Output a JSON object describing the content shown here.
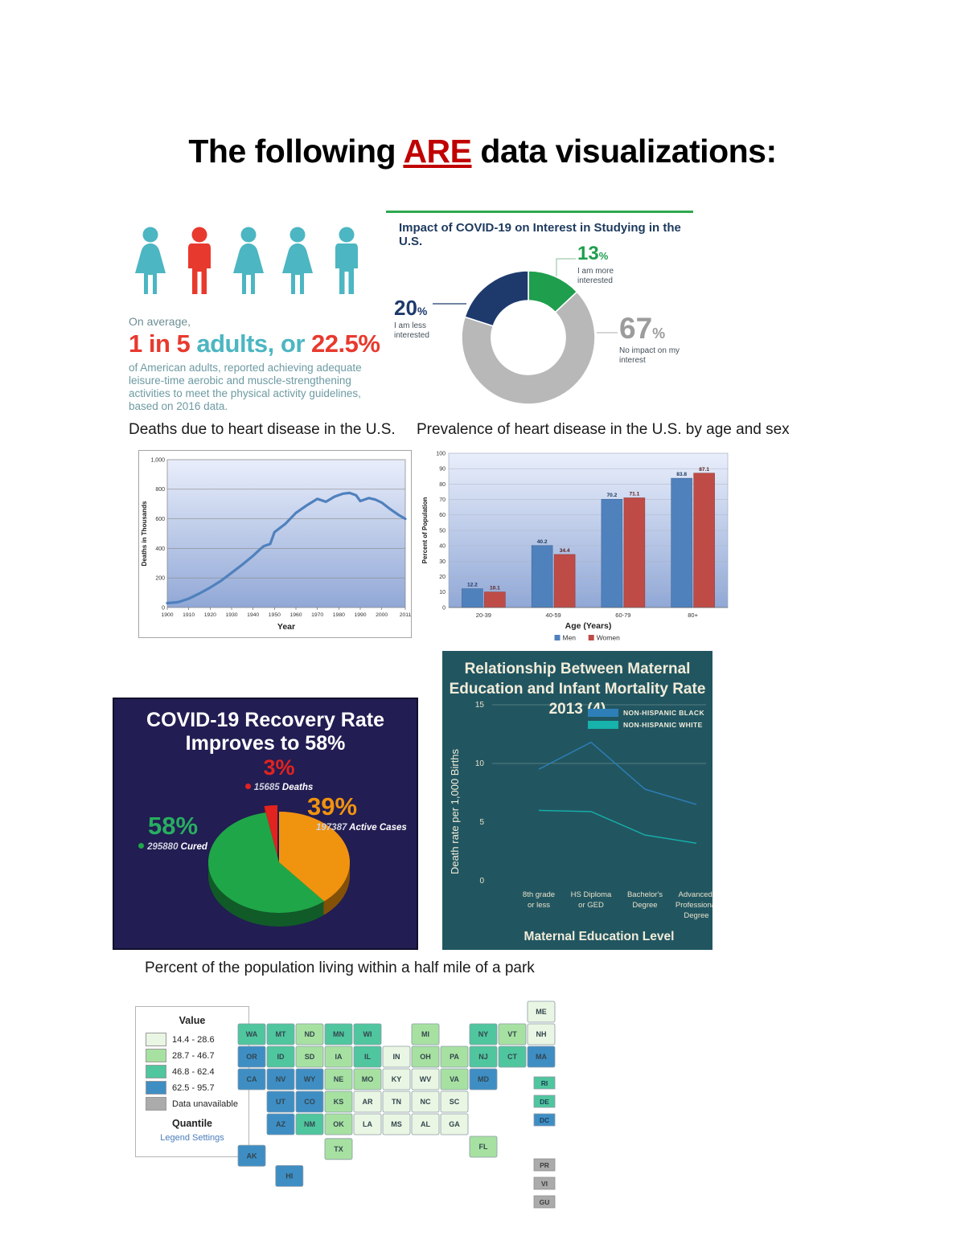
{
  "page": {
    "title_part1": "The following ",
    "title_are": "ARE",
    "title_part2": " data visualizations:"
  },
  "infographic": {
    "icons": [
      "woman",
      "man",
      "woman",
      "woman",
      "man"
    ],
    "highlight_index": 1,
    "teal": "#4cb6c2",
    "red": "#e8392e",
    "line1": "On average,",
    "big_red1": "1 in 5",
    "big_teal": " adults, or ",
    "big_red2": "22.5%",
    "body": "of American adults, reported achieving adequate leisure-time aerobic and muscle-strengthening activities to meet the physical activity guidelines, based on 2016 data."
  },
  "captions": {
    "line_chart": "Deaths due to heart disease in the U.S.",
    "bar_chart": "Prevalence of heart disease in the U.S. by age and sex",
    "map": "Percent of the population living within a half mile of a park"
  },
  "chart_data": [
    {
      "type": "pie",
      "variant": "donut",
      "title": "Impact of COVID-19 on Interest in Studying in the U.S.",
      "slices": [
        {
          "label": "I am more interested",
          "value": 13,
          "pct_num": "13",
          "pct_sign": "%",
          "color": "#1f9e4d"
        },
        {
          "label": "No impact on my interest",
          "value": 67,
          "pct_num": "67",
          "pct_sign": "%",
          "color": "#b8b8b8"
        },
        {
          "label": "I am less interested",
          "value": 20,
          "pct_num": "20",
          "pct_sign": "%",
          "color": "#1e3a6d"
        }
      ],
      "accent_rule_color": "#2fa84f"
    },
    {
      "type": "line",
      "title": "Deaths due to heart disease in the U.S.",
      "xlabel": "Year",
      "ylabel": "Deaths in Thousands",
      "ylim": [
        0,
        1000
      ],
      "ytick_labels": [
        "0",
        "200",
        "400",
        "600",
        "800",
        "1,000"
      ],
      "xticks": [
        1900,
        1910,
        1920,
        1930,
        1940,
        1950,
        1960,
        1970,
        1980,
        1990,
        2000,
        2011
      ],
      "line_color": "#4f81bd",
      "x": [
        1900,
        1905,
        1910,
        1915,
        1920,
        1925,
        1930,
        1935,
        1940,
        1943,
        1945,
        1948,
        1950,
        1955,
        1960,
        1965,
        1970,
        1974,
        1978,
        1982,
        1985,
        1988,
        1990,
        1994,
        1997,
        2000,
        2004,
        2008,
        2011
      ],
      "y": [
        30,
        36,
        60,
        95,
        135,
        180,
        235,
        290,
        350,
        390,
        415,
        430,
        510,
        565,
        640,
        690,
        735,
        715,
        750,
        770,
        775,
        760,
        720,
        740,
        730,
        710,
        665,
        625,
        600
      ]
    },
    {
      "type": "bar",
      "title": "Prevalence of heart disease in the U.S. by age and sex",
      "categories": [
        "20-39",
        "40-59",
        "60-79",
        "80+"
      ],
      "series": [
        {
          "name": "Men",
          "color": "#4f81bd",
          "values": [
            12.2,
            40.2,
            70.2,
            83.8
          ]
        },
        {
          "name": "Women",
          "color": "#bf4b47",
          "values": [
            10.1,
            34.4,
            71.1,
            87.1
          ]
        }
      ],
      "xlabel": "Age (Years)",
      "ylabel": "Percent of Population",
      "ylim": [
        0,
        100
      ],
      "ytick_step": 10
    },
    {
      "type": "pie",
      "variant": "3d",
      "title_line1": "COVID-19 Recovery Rate",
      "title_line2": "Improves to 58%",
      "bg": "#221d52",
      "slices": [
        {
          "label": "Cured",
          "pct": "58%",
          "count": "295880",
          "value": 58,
          "color": "#1fa648"
        },
        {
          "label": "Active Cases",
          "pct": "39%",
          "count": "197387",
          "value": 39,
          "color": "#f0930f"
        },
        {
          "label": "Deaths",
          "pct": "3%",
          "count": "15685",
          "value": 3,
          "color": "#e2231f"
        }
      ]
    },
    {
      "type": "line",
      "title_line1": "Relationship Between Maternal",
      "title_line2": "Education and Infant Mortality Rate",
      "title_line3": "2013 (4)",
      "bg": "#215661",
      "categories": [
        [
          "8th grade",
          "or less"
        ],
        [
          "HS Diploma",
          "or GED"
        ],
        [
          "Bachelor's",
          "Degree"
        ],
        [
          "Advanced/",
          "Professional",
          "Degree"
        ]
      ],
      "series": [
        {
          "name": "NON-HISPANIC BLACK",
          "color": "#2e7fb8",
          "values": [
            9.5,
            11.8,
            7.8,
            6.5
          ]
        },
        {
          "name": "NON-HISPANIC WHITE",
          "color": "#16b2ab",
          "values": [
            6.0,
            5.9,
            3.9,
            3.2
          ]
        }
      ],
      "ylabel": "Death rate per 1,000 Births",
      "xlabel": "Maternal Education Level",
      "yticks": [
        0,
        5,
        10,
        15
      ],
      "ylim": [
        0,
        16
      ]
    },
    {
      "type": "choropleth",
      "title": "Percent of the population living within a half mile of a park",
      "legend_title": "Value",
      "classes": [
        {
          "range": "14.4 - 28.6",
          "color": "#e9f6e3"
        },
        {
          "range": "28.7 - 46.7",
          "color": "#a7e1a1"
        },
        {
          "range": "46.8 - 62.4",
          "color": "#4fc69e"
        },
        {
          "range": "62.5 - 95.7",
          "color": "#3e8ec4"
        },
        {
          "range": "Data unavailable",
          "color": "#ababab"
        }
      ],
      "method": "Quantile",
      "legend_link": "Legend Settings",
      "states": [
        {
          "abbr": "WA",
          "q": 3
        },
        {
          "abbr": "MT",
          "q": 3
        },
        {
          "abbr": "ND",
          "q": 2
        },
        {
          "abbr": "MN",
          "q": 3
        },
        {
          "abbr": "WI",
          "q": 3
        },
        {
          "abbr": "MI",
          "q": 2
        },
        {
          "abbr": "NY",
          "q": 3
        },
        {
          "abbr": "VT",
          "q": 2
        },
        {
          "abbr": "NH",
          "q": 1
        },
        {
          "abbr": "ME",
          "q": 1
        },
        {
          "abbr": "OR",
          "q": 4
        },
        {
          "abbr": "ID",
          "q": 3
        },
        {
          "abbr": "SD",
          "q": 2
        },
        {
          "abbr": "IA",
          "q": 2
        },
        {
          "abbr": "IL",
          "q": 3
        },
        {
          "abbr": "IN",
          "q": 1
        },
        {
          "abbr": "OH",
          "q": 2
        },
        {
          "abbr": "PA",
          "q": 2
        },
        {
          "abbr": "NJ",
          "q": 3
        },
        {
          "abbr": "CT",
          "q": 3
        },
        {
          "abbr": "MA",
          "q": 4
        },
        {
          "abbr": "CA",
          "q": 4
        },
        {
          "abbr": "NV",
          "q": 4
        },
        {
          "abbr": "WY",
          "q": 4
        },
        {
          "abbr": "NE",
          "q": 2
        },
        {
          "abbr": "MO",
          "q": 2
        },
        {
          "abbr": "KY",
          "q": 1
        },
        {
          "abbr": "WV",
          "q": 1
        },
        {
          "abbr": "VA",
          "q": 2
        },
        {
          "abbr": "MD",
          "q": 4
        },
        {
          "abbr": "UT",
          "q": 4
        },
        {
          "abbr": "CO",
          "q": 4
        },
        {
          "abbr": "KS",
          "q": 2
        },
        {
          "abbr": "AR",
          "q": 1
        },
        {
          "abbr": "TN",
          "q": 1
        },
        {
          "abbr": "NC",
          "q": 1
        },
        {
          "abbr": "SC",
          "q": 1
        },
        {
          "abbr": "AZ",
          "q": 4
        },
        {
          "abbr": "NM",
          "q": 3
        },
        {
          "abbr": "OK",
          "q": 2
        },
        {
          "abbr": "LA",
          "q": 1
        },
        {
          "abbr": "MS",
          "q": 1
        },
        {
          "abbr": "AL",
          "q": 1
        },
        {
          "abbr": "GA",
          "q": 1
        },
        {
          "abbr": "TX",
          "q": 2
        },
        {
          "abbr": "FL",
          "q": 2
        },
        {
          "abbr": "AK",
          "q": 4
        },
        {
          "abbr": "HI",
          "q": 4
        }
      ],
      "insets": [
        {
          "abbr": "RI",
          "q": 3
        },
        {
          "abbr": "DE",
          "q": 3
        },
        {
          "abbr": "DC",
          "q": 4
        }
      ],
      "territories": [
        {
          "abbr": "PR",
          "q": 0
        },
        {
          "abbr": "VI",
          "q": 0
        },
        {
          "abbr": "GU",
          "q": 0
        }
      ]
    }
  ]
}
